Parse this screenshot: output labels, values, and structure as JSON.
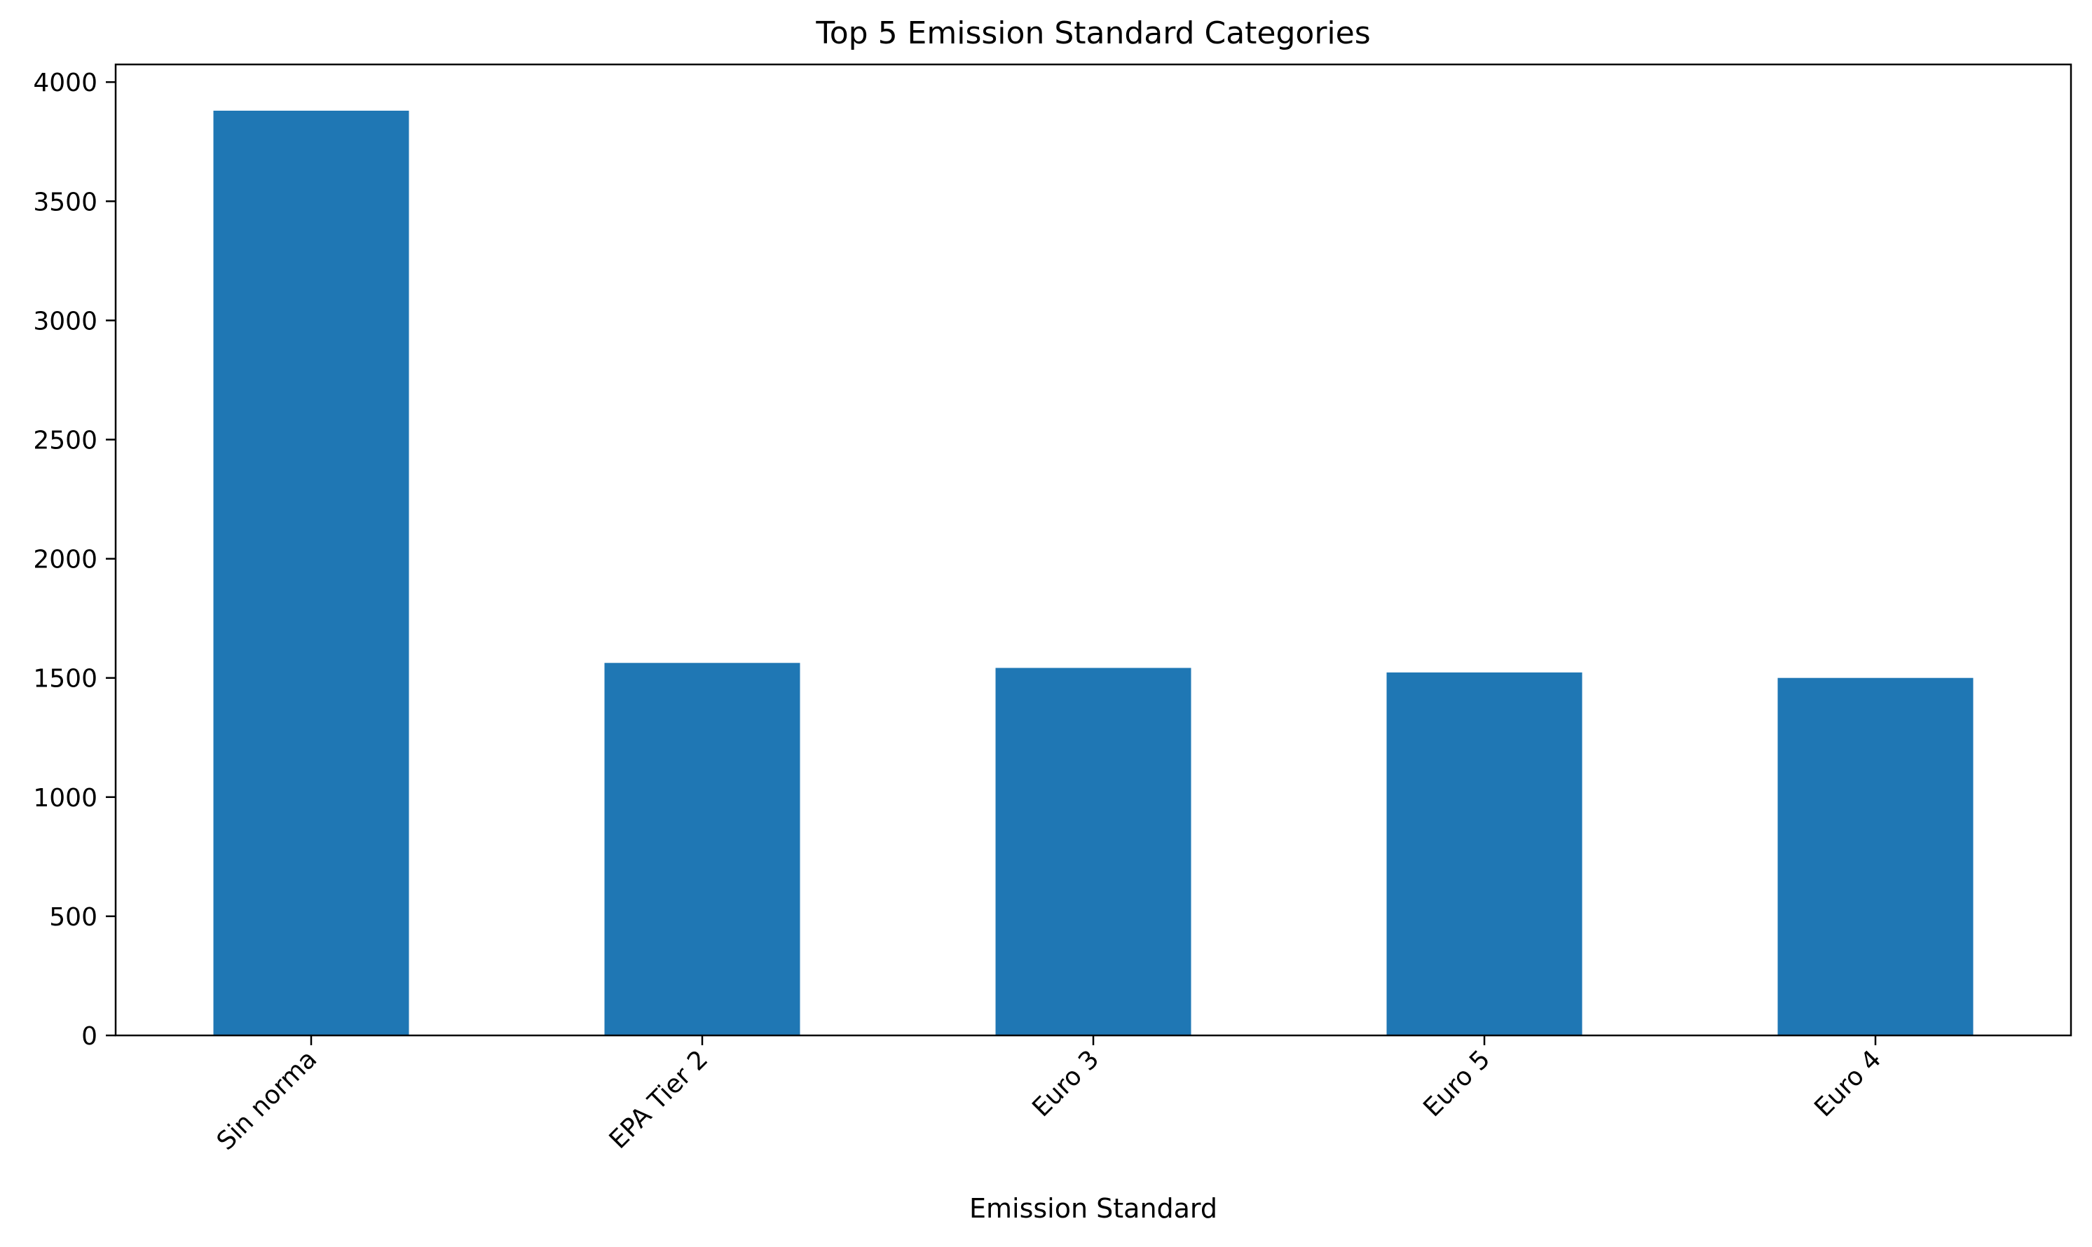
{
  "chart_data": {
    "type": "bar",
    "title": "Top 5 Emission Standard Categories",
    "xlabel": "Emission Standard",
    "ylabel": "",
    "categories": [
      "Sin norma",
      "EPA Tier 2",
      "Euro 3",
      "Euro 5",
      "Euro 4"
    ],
    "values": [
      3880,
      1563,
      1542,
      1523,
      1500
    ],
    "ylim": [
      0,
      4074
    ],
    "yticks": [
      0,
      500,
      1000,
      1500,
      2000,
      2500,
      3000,
      3500,
      4000
    ],
    "bar_color": "#1f77b4",
    "grid": false,
    "legend": "none"
  }
}
